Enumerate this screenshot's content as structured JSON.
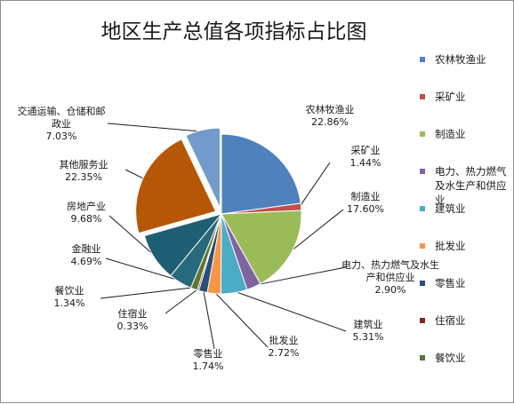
{
  "chart_data": {
    "type": "pie",
    "title": "地区生产总值各项指标占比图",
    "legend_position": "right",
    "categories": [
      "农林牧渔业",
      "采矿业",
      "制造业",
      "电力、热力燃气及水生产和供应业",
      "建筑业",
      "批发业",
      "零售业",
      "住宿业",
      "餐饮业",
      "金融业",
      "房地产业",
      "其他服务业",
      "交通运输、仓储和邮政业"
    ],
    "values": [
      22.86,
      1.44,
      17.6,
      2.9,
      5.31,
      2.72,
      1.74,
      0.33,
      1.34,
      4.69,
      9.68,
      22.35,
      7.03
    ],
    "value_labels": [
      "22.86%",
      "1.44%",
      "17.60%",
      "2.90%",
      "5.31%",
      "2.72%",
      "1.74%",
      "0.33%",
      "1.34%",
      "4.69%",
      "9.68%",
      "22.35%",
      "7.03%"
    ],
    "colors": [
      "#4f81bd",
      "#c0504d",
      "#9bbb59",
      "#8064a2",
      "#4bacc6",
      "#f79646",
      "#2c4d75",
      "#772c2a",
      "#5f7530",
      "#276a7c",
      "#1f5f73",
      "#b65708",
      "#729aca"
    ],
    "legend_entries": [
      "农林牧渔业",
      "采矿业",
      "制造业",
      "电力、热力燃气及水生产和供应业",
      "建筑业",
      "批发业",
      "零售业",
      "住宿业",
      "餐饮业"
    ]
  }
}
